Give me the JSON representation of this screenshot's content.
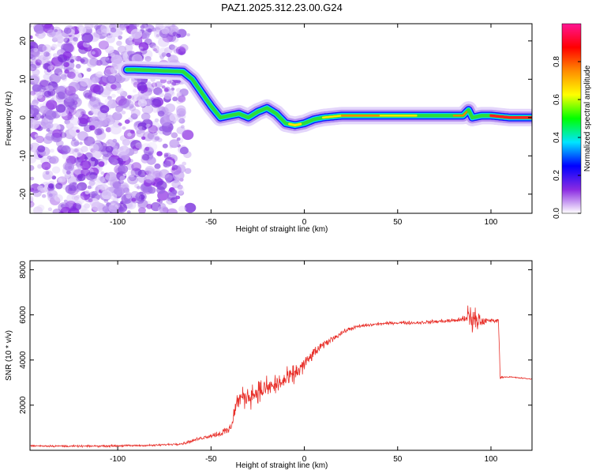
{
  "title": "PAZ1.2025.312.23.00.G24",
  "colors": {
    "trace": "#e8302a",
    "axis": "#000000",
    "background": "#ffffff"
  },
  "chart_data": [
    {
      "type": "heatmap",
      "xlabel": "Height of straight line (km)",
      "ylabel": "Frequency (Hz)",
      "xlim": [
        -147,
        122
      ],
      "ylim": [
        -25,
        24.5
      ],
      "x_ticks": [
        -100,
        -50,
        0,
        50,
        100
      ],
      "x_tick_labels": [
        "-100",
        "-50",
        "0",
        "50",
        "100"
      ],
      "y_ticks": [
        20,
        10,
        0,
        -10,
        -20
      ],
      "y_tick_labels": [
        "20",
        "10",
        "0",
        "-10",
        "-20"
      ],
      "noise_region_x": [
        -147,
        -65
      ],
      "ridge": {
        "x": [
          -95,
          -92,
          -65,
          -60,
          -55,
          -50,
          -45,
          -40,
          -35,
          -30,
          -25,
          -20,
          -15,
          -10,
          -5,
          0,
          5,
          10,
          20,
          30,
          50,
          70,
          85,
          88,
          90,
          95,
          100,
          110,
          122
        ],
        "y": [
          12.5,
          12.5,
          12,
          10,
          6.5,
          3,
          0,
          0.5,
          1,
          0,
          1.5,
          2.5,
          1,
          -1.5,
          -2,
          -1.5,
          -0.5,
          0,
          0.5,
          0.5,
          0.5,
          0.5,
          0.5,
          2,
          0,
          0.5,
          0.5,
          0,
          0
        ]
      },
      "colorbar": {
        "label": "Normalized spectral amplitude",
        "range": [
          0,
          1
        ],
        "ticks": [
          0.0,
          0.2,
          0.4,
          0.6,
          0.8
        ],
        "tick_labels": [
          "0.0",
          "0.2",
          "0.4",
          "0.6",
          "0.8"
        ],
        "colormap": [
          "#ffffff",
          "#8a2be2",
          "#0000ff",
          "#00e5ff",
          "#00ff00",
          "#ffff00",
          "#ff8c00",
          "#ff0000",
          "#ff1493"
        ]
      }
    },
    {
      "type": "line",
      "xlabel": "Height of straight line (km)",
      "ylabel": "SNR (10 * v/v)",
      "xlim": [
        -147,
        122
      ],
      "ylim": [
        0,
        8400
      ],
      "x_ticks": [
        -100,
        -50,
        0,
        50,
        100
      ],
      "x_tick_labels": [
        "-100",
        "-50",
        "0",
        "50",
        "100"
      ],
      "y_ticks": [
        2000,
        4000,
        6000,
        8000
      ],
      "y_tick_labels": [
        "2000",
        "4000",
        "6000",
        "8000"
      ],
      "series": [
        {
          "x": [
            -147,
            -120,
            -100,
            -80,
            -65,
            -60,
            -55,
            -50,
            -45,
            -40,
            -38,
            -36,
            -34,
            -30,
            -25,
            -20,
            -15,
            -10,
            -5,
            0,
            5,
            10,
            15,
            20,
            25,
            30,
            40,
            50,
            60,
            70,
            80,
            85,
            88,
            90,
            92,
            95,
            100,
            104,
            105,
            106,
            110,
            122
          ],
          "y": [
            200,
            180,
            200,
            220,
            300,
            420,
            550,
            650,
            750,
            900,
            1500,
            2200,
            2300,
            2400,
            2600,
            2750,
            2900,
            3100,
            3400,
            3800,
            4300,
            4650,
            4950,
            5200,
            5400,
            5500,
            5600,
            5650,
            5650,
            5700,
            5750,
            5800,
            6000,
            5500,
            5800,
            5700,
            5750,
            5750,
            3200,
            3250,
            3250,
            3150
          ],
          "noise": [
            60,
            60,
            60,
            60,
            80,
            100,
            120,
            150,
            250,
            400,
            500,
            600,
            650,
            700,
            750,
            700,
            700,
            650,
            600,
            500,
            350,
            250,
            200,
            150,
            130,
            120,
            100,
            100,
            110,
            120,
            140,
            200,
            600,
            1600,
            1200,
            300,
            150,
            100,
            60,
            50,
            40,
            40
          ]
        }
      ]
    }
  ]
}
